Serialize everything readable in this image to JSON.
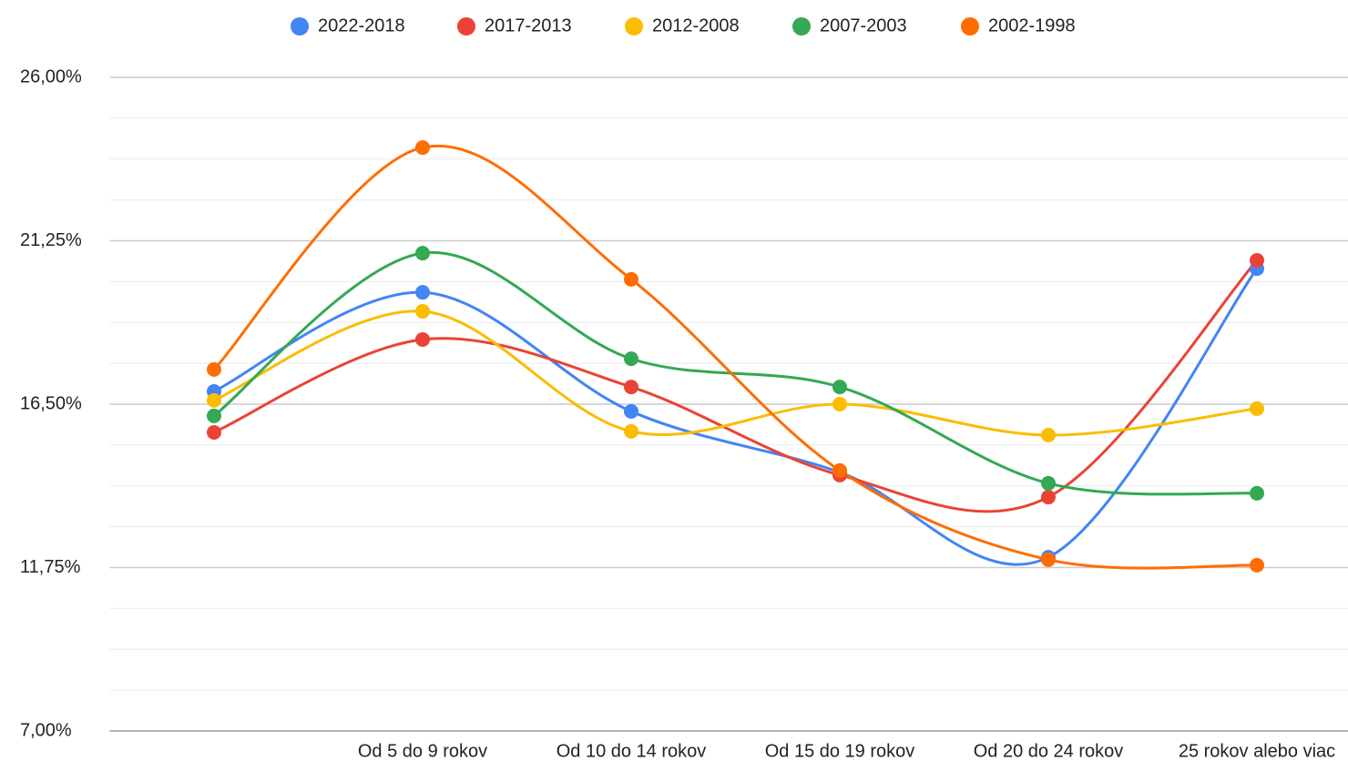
{
  "chart_data": {
    "type": "line",
    "categories": [
      null,
      "Od 5 do 9 rokov",
      "Od 10 do 14 rokov",
      "Od 15 do 19 rokov",
      "Od 20 do 24 rokov",
      "25 rokov alebo viac"
    ],
    "series": [
      {
        "name": "2022-2018",
        "color": "#4285f4",
        "values": [
          16.87,
          19.75,
          16.29,
          14.52,
          12.05,
          20.44
        ]
      },
      {
        "name": "2017-2013",
        "color": "#ea4335",
        "values": [
          15.68,
          18.38,
          17.0,
          14.44,
          13.8,
          20.68
        ]
      },
      {
        "name": "2012-2008",
        "color": "#fbbc04",
        "values": [
          16.61,
          19.2,
          15.71,
          16.5,
          15.6,
          16.37
        ]
      },
      {
        "name": "2007-2003",
        "color": "#34a853",
        "values": [
          16.16,
          20.89,
          17.82,
          17.0,
          14.2,
          13.91
        ]
      },
      {
        "name": "2002-1998",
        "color": "#ff6d01",
        "values": [
          17.51,
          23.96,
          20.13,
          14.57,
          11.98,
          11.82
        ]
      }
    ],
    "ylim": [
      7,
      26
    ],
    "yticks": [
      {
        "value": 26,
        "label": "26,00%"
      },
      {
        "value": 21.25,
        "label": "21,25%"
      },
      {
        "value": 16.5,
        "label": "16,50%"
      },
      {
        "value": 11.75,
        "label": "11,75%"
      },
      {
        "value": 7,
        "label": "7,00%"
      }
    ],
    "grid": true,
    "smooth": true,
    "legend": "top"
  }
}
